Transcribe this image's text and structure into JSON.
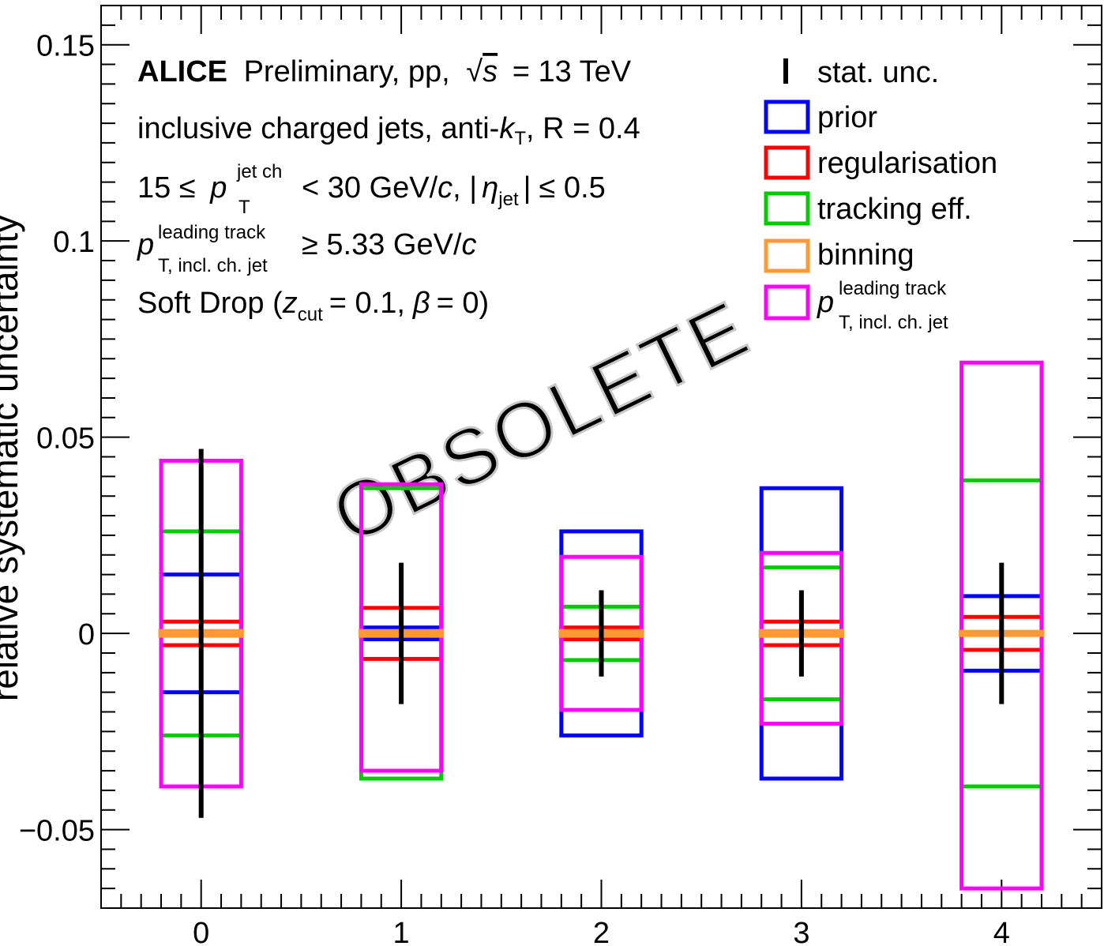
{
  "chart_data": {
    "type": "box",
    "ylabel": "relative systematic uncertainty",
    "xlim": [
      -0.5,
      4.5
    ],
    "ylim": [
      -0.07,
      0.16
    ],
    "x_ticks": [
      0,
      1,
      2,
      3,
      4
    ],
    "y_ticks": [
      -0.05,
      0,
      0.05,
      0.1,
      0.15
    ],
    "y_tick_labels": [
      "−0.05",
      "0",
      "0.05",
      "0.1",
      "0.15"
    ],
    "grid": false,
    "legend_position": "top-right",
    "annotations": {
      "line1_bold": "ALICE",
      "line1_rest": "Preliminary, pp,",
      "line1_energy": "= 13 TeV",
      "line2": "inclusive charged jets, anti-",
      "line2_kt_sub": "T",
      "line2_R": ", R = 0.4",
      "line3_left": "15 ≤",
      "line3_pt_sup": "jet ch",
      "line3_pt_sub": "T",
      "line3_mid": "< 30 GeV/",
      "line3_eta_sub": "jet",
      "line3_right": "≤ 0.5",
      "line4_sup": "leading track",
      "line4_sub": "T, incl. ch. jet",
      "line4_right": "≥ 5.33 GeV/",
      "line5_left": "Soft Drop (",
      "line5_zsub": "cut",
      "line5_mid": "= 0.1,",
      "line5_right": "= 0)"
    },
    "watermark": "OBSOLETE",
    "series": [
      {
        "name": "stat. unc.",
        "kind": "errorbar",
        "color": "#000000",
        "values": [
          0.047,
          0.018,
          0.011,
          0.011,
          0.018
        ]
      },
      {
        "name": "prior",
        "kind": "box",
        "color": "#0000ff",
        "values": [
          0.015,
          0.0015,
          0.026,
          0.037,
          0.0095
        ]
      },
      {
        "name": "regularisation",
        "kind": "box",
        "color": "#ff0000",
        "values": [
          0.003,
          0.0065,
          0.0015,
          0.003,
          0.0042
        ]
      },
      {
        "name": "tracking eff.",
        "kind": "box",
        "color": "#00cc00",
        "values": [
          0.026,
          0.037,
          0.0068,
          0.0168,
          0.039
        ]
      },
      {
        "name": "binning",
        "kind": "box",
        "color": "#ff9933",
        "values": [
          0.0004,
          0.0004,
          0.0004,
          0.0004,
          0.0002
        ]
      },
      {
        "name": "leading track",
        "kind": "box",
        "color": "#ff00ff",
        "values": [
          0.044,
          0.038,
          0.0195,
          0.0205,
          0.069
        ],
        "values_low": [
          0.039,
          0.035,
          0.0195,
          0.023,
          0.065
        ]
      }
    ],
    "legend": {
      "stat": "stat. unc.",
      "prior": "prior",
      "reg": "regularisation",
      "track": "tracking eff.",
      "binning": "binning",
      "lead_sup": "leading track",
      "lead_sub": "T, incl. ch. jet"
    }
  }
}
